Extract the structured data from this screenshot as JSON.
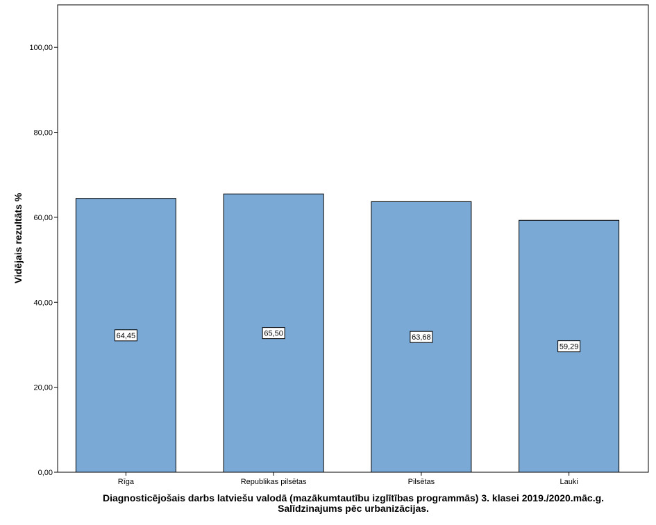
{
  "chart_data": {
    "type": "bar",
    "categories": [
      "Rīga",
      "Republikas pilsētas",
      "Pilsētas",
      "Lauki"
    ],
    "values": [
      64.45,
      65.5,
      63.68,
      59.29
    ],
    "data_labels": [
      "64,45",
      "65,50",
      "63,68",
      "59,29"
    ],
    "xlabel_line1": "Diagnosticējošais darbs latviešu valodā (mazākumtautību izglītības programmās) 3. klasei 2019./2020.māc.g.",
    "xlabel_line2": "Salīdzinajums pēc urbanizācijas.",
    "ylabel": "Vidējais rezultāts %",
    "ylim": [
      0,
      110
    ],
    "yticks": [
      0,
      20,
      40,
      60,
      80,
      100
    ],
    "ytick_labels": [
      "0,00",
      "20,00",
      "40,00",
      "60,00",
      "80,00",
      "100,00"
    ],
    "bar_color": "#7ba9d6",
    "grid": false,
    "legend": "none"
  }
}
